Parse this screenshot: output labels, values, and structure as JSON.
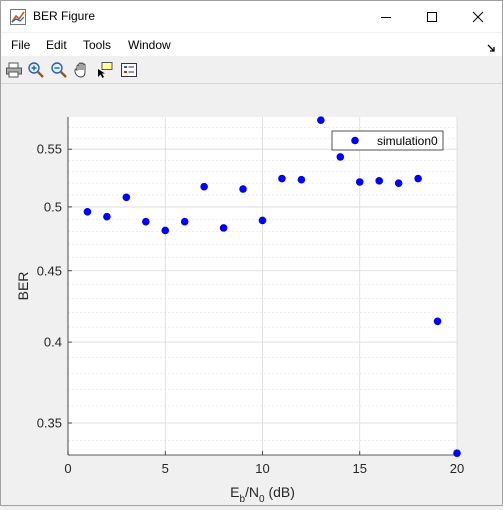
{
  "window": {
    "title": "BER Figure",
    "icon": "matlab-figure-icon"
  },
  "menu": {
    "items": [
      "File",
      "Edit",
      "Tools",
      "Window"
    ]
  },
  "toolbar": {
    "tools": [
      "print-icon",
      "zoom-in-icon",
      "zoom-out-icon",
      "pan-hand-icon",
      "data-cursor-icon",
      "legend-icon"
    ]
  },
  "chart_data": {
    "type": "scatter",
    "xlabel_parts": [
      "E",
      "b",
      "/N",
      "0",
      " (dB)"
    ],
    "ylabel": "BER",
    "yscale": "log",
    "xlim": [
      0,
      20
    ],
    "ylim": [
      0.332,
      0.58
    ],
    "xticks": [
      0,
      5,
      10,
      15,
      20
    ],
    "yticks": [
      0.35,
      0.4,
      0.45,
      0.5,
      0.55
    ],
    "ytick_labels": [
      "0.35",
      "0.4",
      "0.45",
      "0.5",
      "0.55"
    ],
    "grid": true,
    "minor_grid": true,
    "legend_position": "top-right",
    "series": [
      {
        "name": "simulation0",
        "color": "#0000ff",
        "marker": "circle",
        "x": [
          1,
          2,
          3,
          4,
          5,
          6,
          7,
          8,
          9,
          10,
          11,
          12,
          13,
          14,
          15,
          16,
          17,
          18,
          19,
          20
        ],
        "y": [
          0.496,
          0.492,
          0.508,
          0.488,
          0.481,
          0.488,
          0.517,
          0.483,
          0.515,
          0.489,
          0.524,
          0.523,
          0.577,
          0.543,
          0.521,
          0.522,
          0.52,
          0.524,
          0.414,
          0.333
        ]
      }
    ]
  }
}
